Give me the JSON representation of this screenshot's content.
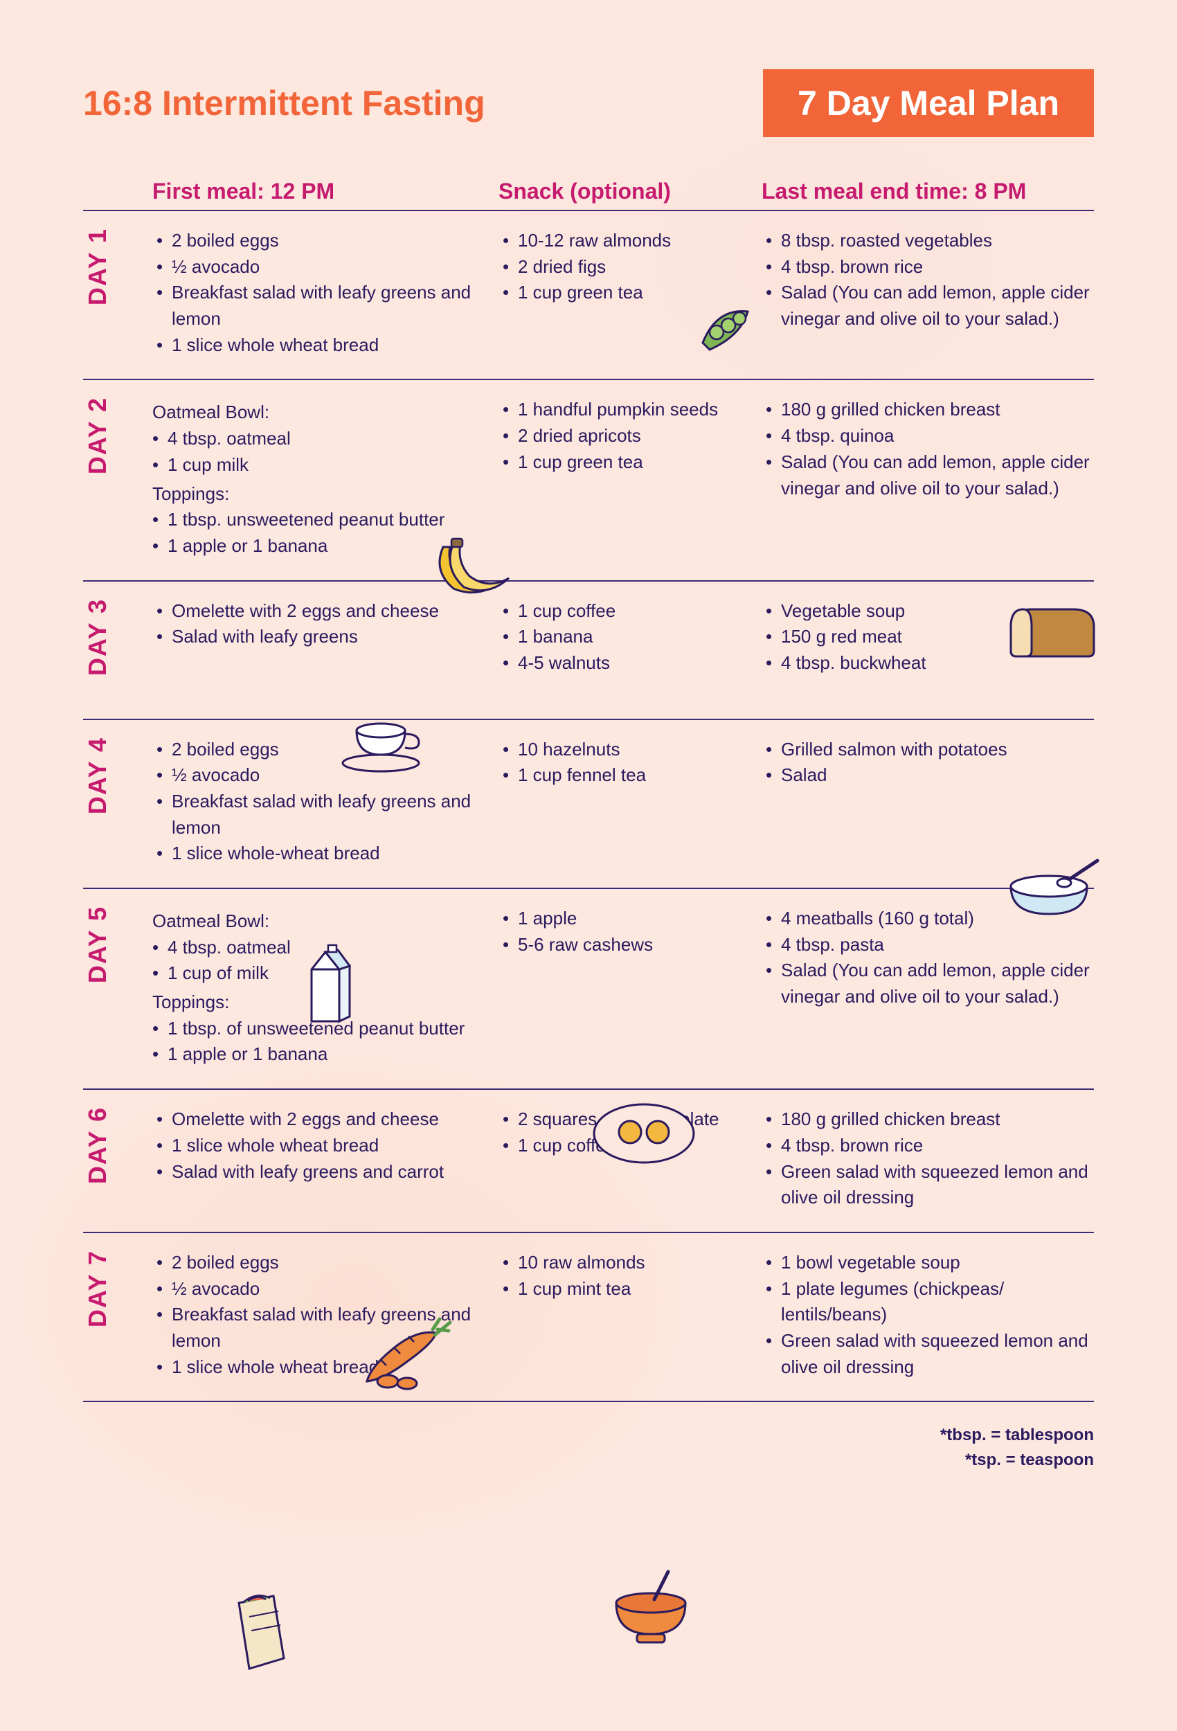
{
  "colors": {
    "accent": "#f16539",
    "magenta": "#c61a6f",
    "text": "#2a1a5e",
    "divider": "#3e2b76",
    "bg": "#fde8e0"
  },
  "header": {
    "title": "16:8 Intermittent Fasting",
    "badge": "7 Day Meal Plan"
  },
  "columns": {
    "first": "First meal: 12 PM",
    "snack": "Snack (optional)",
    "last": "Last meal end time: 8 PM"
  },
  "days": [
    {
      "label": "DAY 1",
      "first": {
        "items": [
          "2 boiled eggs",
          "½ avocado",
          "Breakfast salad with leafy greens and lemon",
          "1 slice whole wheat bread"
        ]
      },
      "snack": {
        "items": [
          "10-12 raw almonds",
          "2 dried figs",
          "1 cup green tea"
        ]
      },
      "last": {
        "items": [
          "8 tbsp. roasted vegetables",
          "4 tbsp. brown rice",
          "Salad (You can add lemon, apple cider vinegar and olive oil to your salad.)"
        ]
      }
    },
    {
      "label": "DAY 2",
      "first": {
        "heading1": "Oatmeal Bowl:",
        "group1": [
          "4 tbsp. oatmeal",
          "1 cup milk"
        ],
        "heading2": "Toppings:",
        "group2": [
          "1 tbsp. unsweetened peanut butter",
          "1 apple or 1 banana"
        ]
      },
      "snack": {
        "items": [
          "1 handful pumpkin seeds",
          "2 dried apricots",
          "1 cup green tea"
        ]
      },
      "last": {
        "items": [
          "180 g grilled chicken breast",
          "4 tbsp. quinoa",
          "Salad (You can add lemon, apple cider vinegar and olive oil to your salad.)"
        ]
      }
    },
    {
      "label": "DAY 3",
      "first": {
        "items": [
          "Omelette with 2 eggs and cheese",
          "Salad with leafy greens"
        ]
      },
      "snack": {
        "items": [
          "1 cup coffee",
          "1 banana",
          "4-5 walnuts"
        ]
      },
      "last": {
        "items": [
          "Vegetable soup",
          "150 g red meat",
          "4 tbsp. buckwheat"
        ]
      }
    },
    {
      "label": "DAY 4",
      "first": {
        "items": [
          "2 boiled eggs",
          "½ avocado",
          "Breakfast salad with leafy greens and lemon",
          "1 slice whole-wheat bread"
        ]
      },
      "snack": {
        "items": [
          "10 hazelnuts",
          "1 cup fennel tea"
        ]
      },
      "last": {
        "items": [
          "Grilled salmon with potatoes",
          "Salad"
        ]
      }
    },
    {
      "label": "DAY 5",
      "first": {
        "heading1": "Oatmeal Bowl:",
        "group1": [
          "4 tbsp. oatmeal",
          "1 cup of milk"
        ],
        "heading2": "Toppings:",
        "group2": [
          "1 tbsp. of unsweetened peanut butter",
          "1 apple or 1 banana"
        ]
      },
      "snack": {
        "items": [
          "1 apple",
          "5-6 raw cashews"
        ]
      },
      "last": {
        "items": [
          "4 meatballs (160 g total)",
          "4 tbsp. pasta",
          "Salad (You can add lemon, apple cider vinegar and olive oil to your salad.)"
        ]
      }
    },
    {
      "label": "DAY 6",
      "first": {
        "items": [
          "Omelette with 2 eggs and cheese",
          "1 slice whole wheat bread",
          "Salad with leafy greens and carrot"
        ]
      },
      "snack": {
        "items": [
          "2 squares dark chocolate",
          "1 cup coffee"
        ]
      },
      "last": {
        "items": [
          "180 g grilled chicken breast",
          "4 tbsp. brown rice",
          "Green salad with squeezed lemon and olive oil dressing"
        ]
      }
    },
    {
      "label": "DAY 7",
      "first": {
        "items": [
          "2 boiled eggs",
          "½ avocado",
          "Breakfast salad with leafy greens and lemon",
          "1 slice whole wheat bread"
        ]
      },
      "snack": {
        "items": [
          "10 raw almonds",
          "1 cup mint tea"
        ]
      },
      "last": {
        "items": [
          "1 bowl vegetable soup",
          "1 plate legumes (chickpeas/ lentils/beans)",
          "Green salad with squeezed lemon and olive oil dressing"
        ]
      }
    }
  ],
  "footnotes": {
    "line1": "*tbsp. = tablespoon",
    "line2": "*tsp. = teaspoon"
  }
}
